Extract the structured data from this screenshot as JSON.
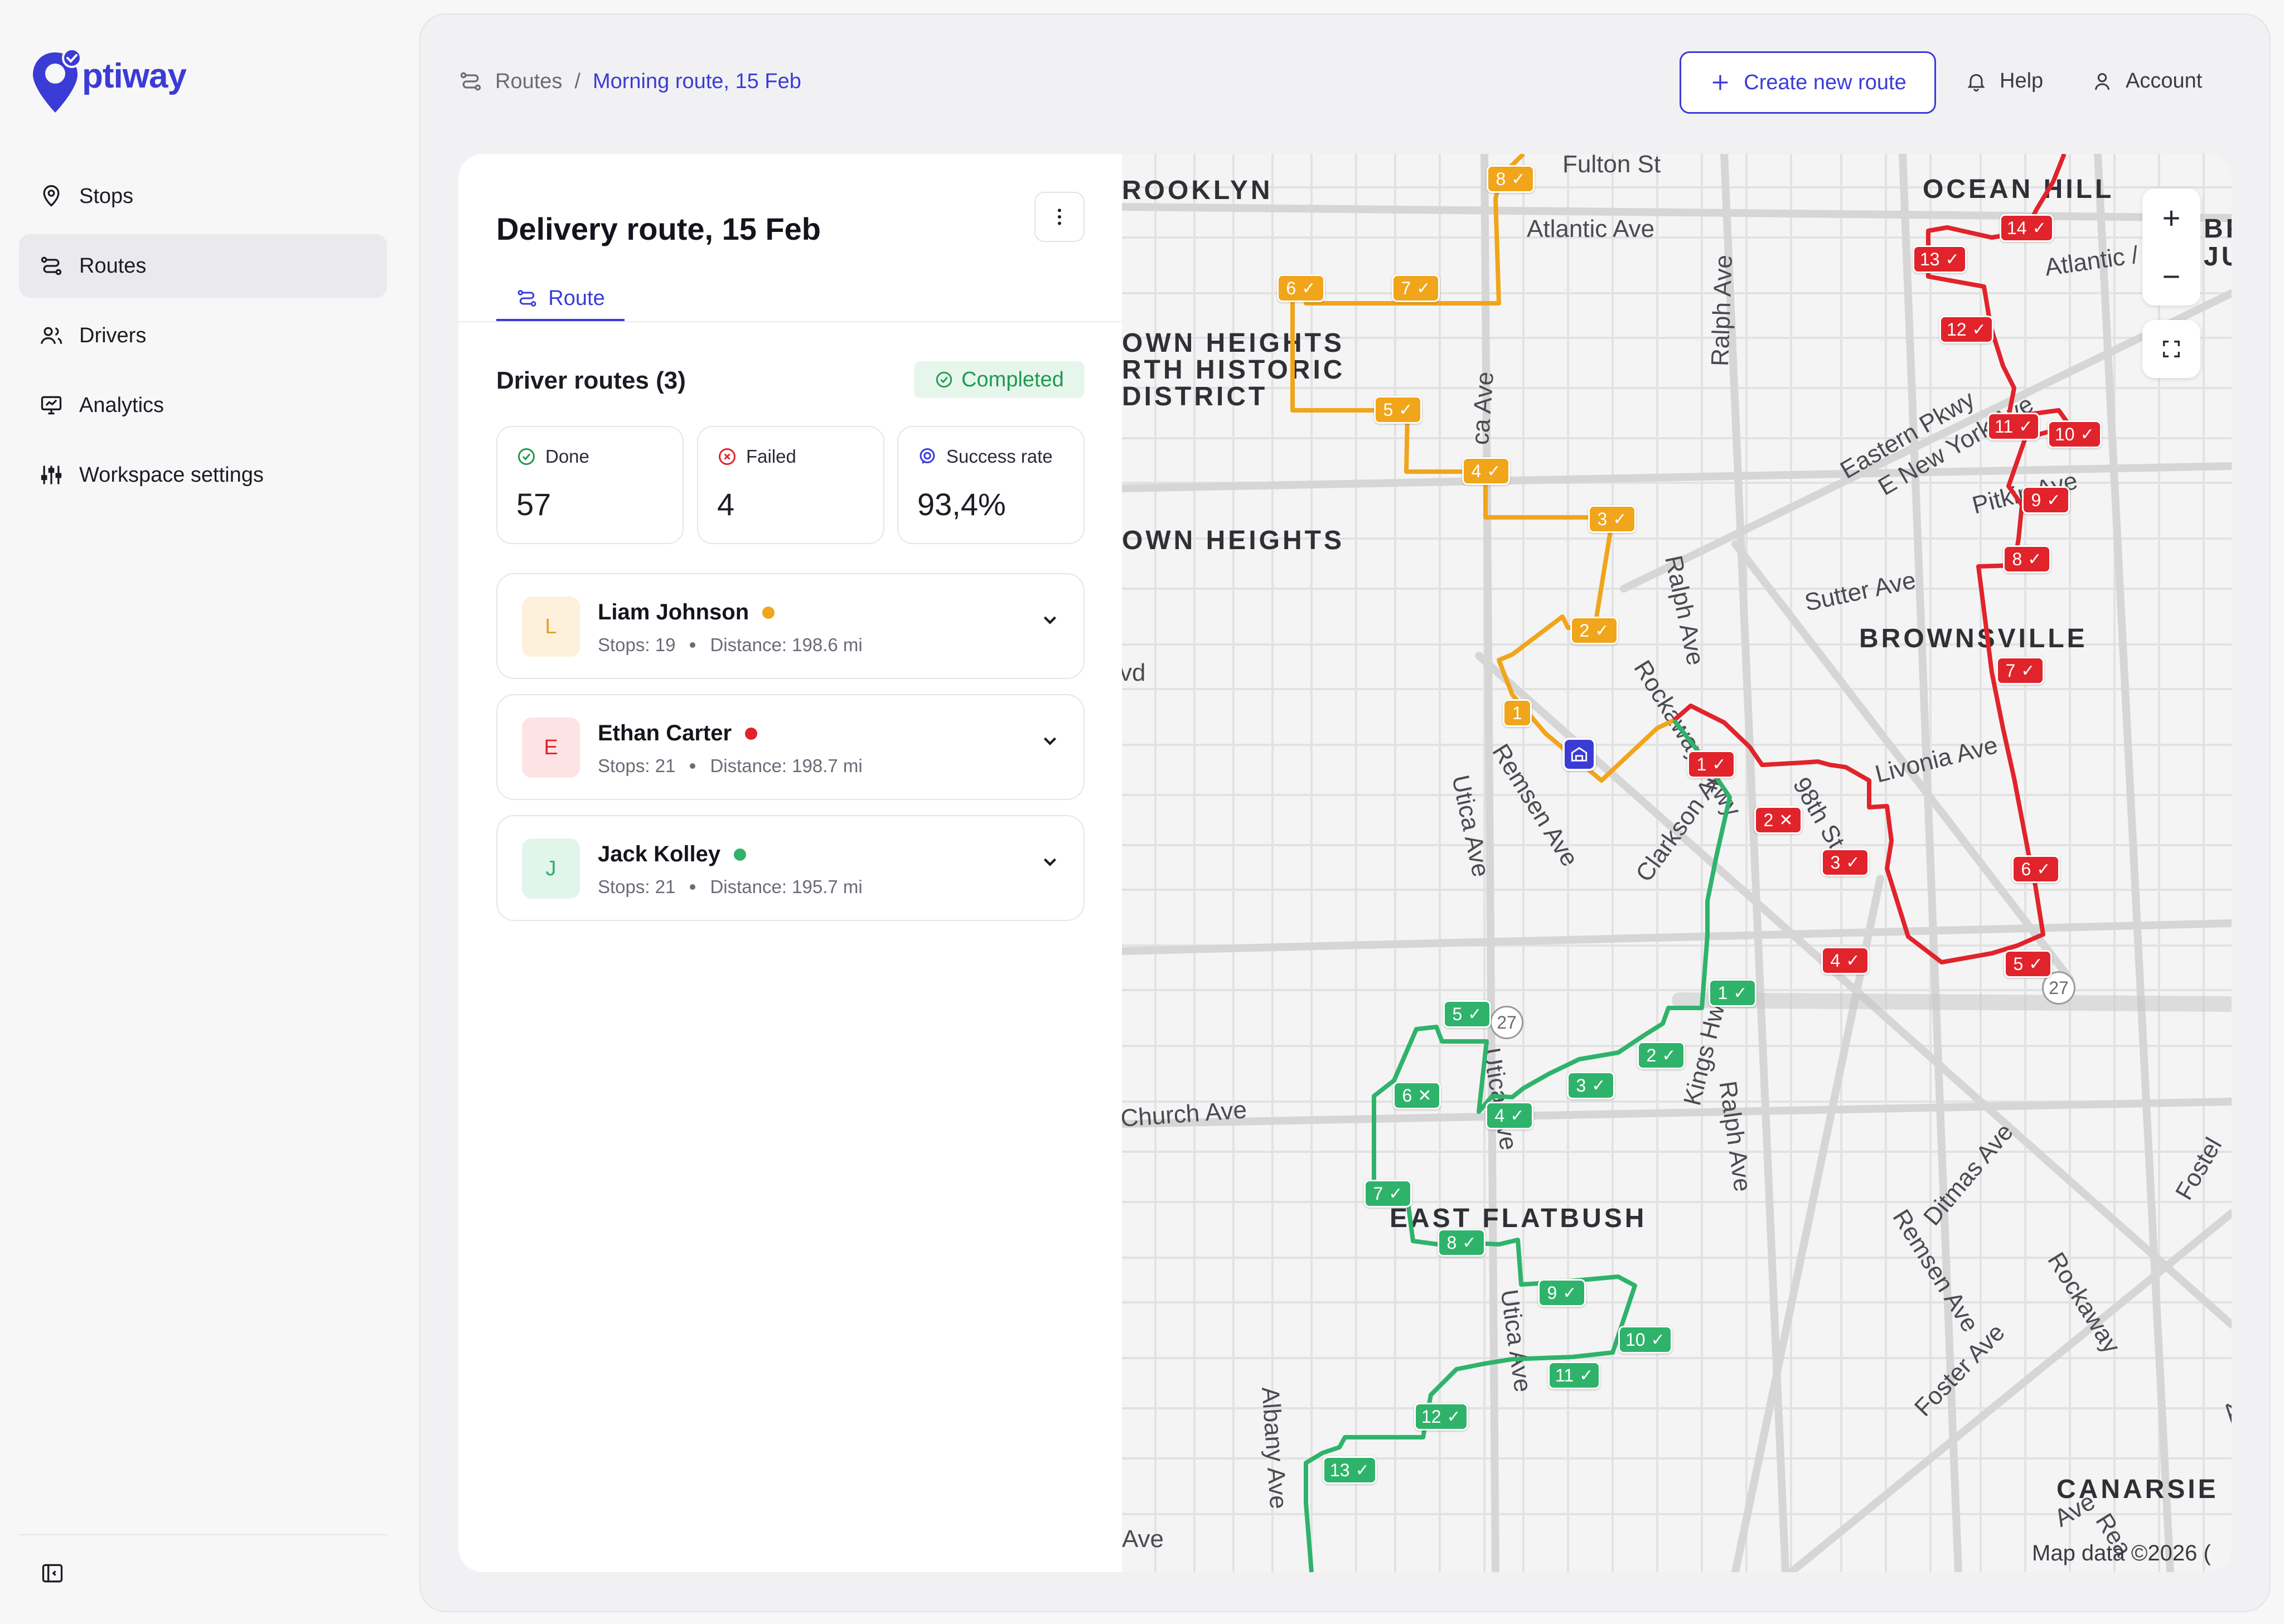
{
  "app": {
    "name": "ptiway",
    "brand_color": "#3b3bd6"
  },
  "sidebar": {
    "items": [
      {
        "label": "Stops",
        "icon": "location-pin-icon",
        "active": false
      },
      {
        "label": "Routes",
        "icon": "route-icon",
        "active": true
      },
      {
        "label": "Drivers",
        "icon": "users-icon",
        "active": false
      },
      {
        "label": "Analytics",
        "icon": "analytics-icon",
        "active": false
      },
      {
        "label": "Workspace settings",
        "icon": "sliders-icon",
        "active": false
      }
    ]
  },
  "header": {
    "breadcrumb": {
      "root": "Routes",
      "separator": "/",
      "current": "Morning route, 15 Feb"
    },
    "create_button": "Create new route",
    "help": "Help",
    "account": "Account"
  },
  "panel": {
    "title": "Delivery route, 15 Feb",
    "tab": "Route",
    "section_title": "Driver routes (3)",
    "status_badge": "Completed",
    "stats": [
      {
        "label": "Done",
        "value": "57",
        "icon": "check-circle-icon",
        "color": "#1f9a4e"
      },
      {
        "label": "Failed",
        "value": "4",
        "icon": "x-circle-icon",
        "color": "#e1232b"
      },
      {
        "label": "Success rate",
        "value": "93,4%",
        "icon": "target-icon",
        "color": "#3b3bd6"
      }
    ],
    "drivers": [
      {
        "initial": "L",
        "name": "Liam Johnson",
        "stops": "Stops: 19",
        "distance": "Distance: 198.6 mi",
        "color": "#f0a51b"
      },
      {
        "initial": "E",
        "name": "Ethan Carter",
        "stops": "Stops: 21",
        "distance": "Distance: 198.7 mi",
        "color": "#e1232b"
      },
      {
        "initial": "J",
        "name": "Jack Kolley",
        "stops": "Stops: 21",
        "distance": "Distance: 195.7 mi",
        "color": "#2fb36b"
      }
    ]
  },
  "map": {
    "attribution": "Map data ©2026 (",
    "route_colors": {
      "yellow": "#f0a51b",
      "red": "#e1232b",
      "green": "#2fb36b"
    },
    "districts": [
      "ROOKLYN",
      "OCEAN HILL",
      "OWN HEIGHTS\nRTH HISTORIC\nDISTRICT",
      "OWN HEIGHTS",
      "BROWNSVILLE",
      "EAST FLATBUSH",
      "CANARSIE",
      "BR\nJU"
    ],
    "streets": [
      "Fulton St",
      "Atlantic Ave",
      "Ralph Ave",
      "Eastern Pkwy",
      "E New York Ave",
      "Atlantic /",
      "Pitkin Ave",
      "Sutter Ave",
      "Ralph Ave",
      "Rockaway Pkwy",
      "Utica Ave",
      "Remsen Ave",
      "Clarkson Ave",
      "98th St",
      "Livonia Ave",
      "vd",
      "Church Ave",
      "Kings Hwy",
      "Ralph Ave",
      "Ditmas Ave",
      "Remsen Ave",
      "Foster Ave",
      "Rockaway",
      "Fostel",
      "Utica Ave",
      "Albany Ave",
      "Ave",
      "Utica Ave",
      "Ave",
      "Rea",
      "Ave",
      "ca Ave",
      "Utica Ave",
      "Clarkson Ave"
    ],
    "route_shields": [
      "27",
      "27"
    ],
    "markers": {
      "yellow": [
        {
          "n": "1",
          "s": "none"
        },
        {
          "n": "2",
          "s": "ok"
        },
        {
          "n": "3",
          "s": "ok"
        },
        {
          "n": "4",
          "s": "ok"
        },
        {
          "n": "5",
          "s": "ok"
        },
        {
          "n": "6",
          "s": "ok"
        },
        {
          "n": "7",
          "s": "ok"
        },
        {
          "n": "8",
          "s": "ok"
        }
      ],
      "red": [
        {
          "n": "1",
          "s": "ok"
        },
        {
          "n": "2",
          "s": "fail"
        },
        {
          "n": "3",
          "s": "ok"
        },
        {
          "n": "4",
          "s": "ok"
        },
        {
          "n": "5",
          "s": "ok"
        },
        {
          "n": "6",
          "s": "ok"
        },
        {
          "n": "7",
          "s": "ok"
        },
        {
          "n": "8",
          "s": "ok"
        },
        {
          "n": "9",
          "s": "ok"
        },
        {
          "n": "10",
          "s": "ok"
        },
        {
          "n": "11",
          "s": "ok"
        },
        {
          "n": "12",
          "s": "ok"
        },
        {
          "n": "13",
          "s": "ok"
        },
        {
          "n": "14",
          "s": "ok"
        }
      ],
      "green": [
        {
          "n": "1",
          "s": "ok"
        },
        {
          "n": "2",
          "s": "ok"
        },
        {
          "n": "3",
          "s": "ok"
        },
        {
          "n": "4",
          "s": "ok"
        },
        {
          "n": "5",
          "s": "ok"
        },
        {
          "n": "6",
          "s": "fail"
        },
        {
          "n": "7",
          "s": "ok"
        },
        {
          "n": "8",
          "s": "ok"
        },
        {
          "n": "9",
          "s": "ok"
        },
        {
          "n": "10",
          "s": "ok"
        },
        {
          "n": "11",
          "s": "ok"
        },
        {
          "n": "12",
          "s": "ok"
        },
        {
          "n": "13",
          "s": "ok"
        }
      ]
    },
    "zoom_in": "+",
    "zoom_out": "−"
  }
}
